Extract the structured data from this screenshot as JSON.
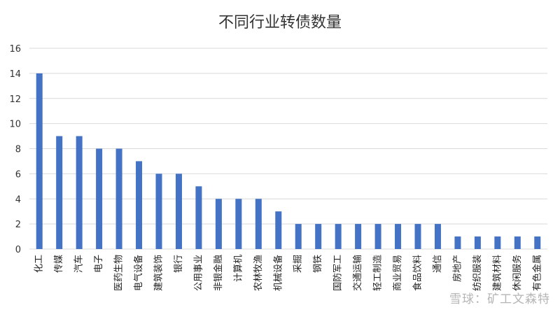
{
  "chart_data": {
    "type": "bar",
    "title": "不同行业转债数量",
    "categories": [
      "化工",
      "传媒",
      "汽车",
      "电子",
      "医药生物",
      "电气设备",
      "建筑装饰",
      "银行",
      "公用事业",
      "非银金融",
      "计算机",
      "农林牧渔",
      "机械设备",
      "采掘",
      "钢铁",
      "国防军工",
      "交通运输",
      "轻工制造",
      "商业贸易",
      "食品饮料",
      "通信",
      "房地产",
      "纺织服装",
      "建筑材料",
      "休闲服务",
      "有色金属"
    ],
    "values": [
      14,
      9,
      9,
      8,
      8,
      7,
      6,
      6,
      5,
      4,
      4,
      4,
      3,
      2,
      2,
      2,
      2,
      2,
      2,
      2,
      2,
      1,
      1,
      1,
      1,
      1
    ],
    "ylim": [
      0,
      16
    ],
    "yticks": [
      0,
      2,
      4,
      6,
      8,
      10,
      12,
      14,
      16
    ],
    "xlabel": "",
    "ylabel": "",
    "grid": true,
    "bar_color": "#4472C4",
    "grid_color": "#d9d9d9"
  },
  "watermark": "雪球：矿工文森特"
}
